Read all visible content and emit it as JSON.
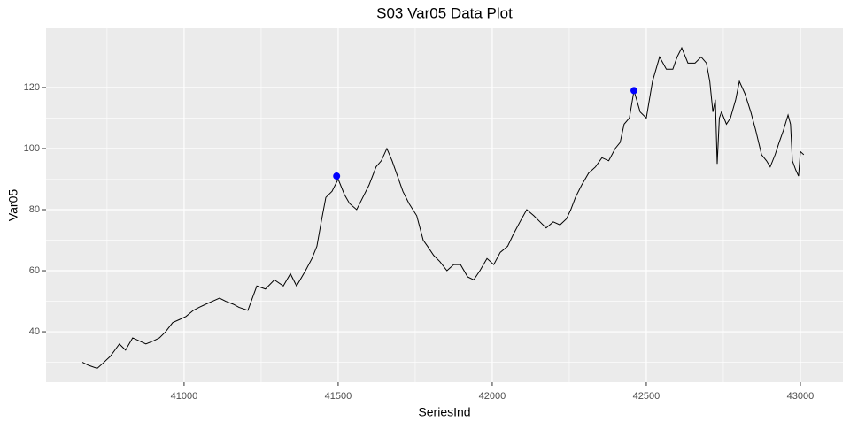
{
  "chart_data": {
    "type": "line",
    "title": "S03 Var05 Data Plot",
    "x_label": "SeriesInd",
    "y_label": "Var05",
    "x": [
      40670,
      40690,
      40718,
      40740,
      40761,
      40790,
      40810,
      40833,
      40855,
      40876,
      40900,
      40920,
      40940,
      40963,
      40985,
      41006,
      41030,
      41049,
      41070,
      41092,
      41115,
      41135,
      41160,
      41178,
      41207,
      41236,
      41264,
      41293,
      41322,
      41345,
      41365,
      41394,
      41415,
      41431,
      41445,
      41460,
      41480,
      41500,
      41520,
      41537,
      41560,
      41580,
      41600,
      41623,
      41640,
      41658,
      41675,
      41689,
      41710,
      41730,
      41755,
      41776,
      41790,
      41810,
      41830,
      41853,
      41875,
      41897,
      41920,
      41940,
      41960,
      41983,
      42005,
      42026,
      42050,
      42069,
      42090,
      42112,
      42135,
      42155,
      42175,
      42198,
      42220,
      42241,
      42255,
      42270,
      42290,
      42313,
      42335,
      42356,
      42378,
      42399,
      42415,
      42428,
      42445,
      42460,
      42480,
      42500,
      42520,
      42543,
      42565,
      42586,
      42600,
      42615,
      42635,
      42658,
      42678,
      42695,
      42706,
      42716,
      42724,
      42730,
      42737,
      42744,
      42760,
      42773,
      42790,
      42802,
      42820,
      42839,
      42855,
      42874,
      42890,
      42902,
      42918,
      42931,
      42945,
      42960,
      42968,
      42974,
      42985,
      42994,
      43000,
      43011
    ],
    "values": [
      30,
      29,
      28,
      30,
      32,
      36,
      34,
      38,
      37,
      36,
      37,
      38,
      40,
      43,
      44,
      45,
      47,
      48,
      49,
      50,
      51,
      50,
      49,
      48,
      47,
      55,
      54,
      57,
      55,
      59,
      55,
      60,
      64,
      68,
      76,
      84,
      86,
      90,
      85,
      82,
      80,
      84,
      88,
      94,
      96,
      100,
      96,
      92,
      86,
      82,
      78,
      70,
      68,
      65,
      63,
      60,
      62,
      62,
      58,
      57,
      60,
      64,
      62,
      66,
      68,
      72,
      76,
      80,
      78,
      76,
      74,
      76,
      75,
      77,
      80,
      84,
      88,
      92,
      94,
      97,
      96,
      100,
      102,
      108,
      110,
      119,
      112,
      110,
      122,
      130,
      126,
      126,
      130,
      133,
      128,
      128,
      130,
      128,
      122,
      112,
      116,
      95,
      110,
      112,
      108,
      110,
      116,
      122,
      118,
      112,
      106,
      98,
      96,
      94,
      98,
      102,
      106,
      111,
      108,
      96,
      93,
      91,
      99,
      98
    ],
    "color": "#000000",
    "points": {
      "x": [
        41495,
        42460
      ],
      "values": [
        91,
        119
      ],
      "color": "#0000ff"
    },
    "xlim": [
      40552,
      43138
    ],
    "ylim": [
      23.5,
      139.4
    ],
    "xticks": [
      41000,
      41500,
      42000,
      42500,
      43000
    ],
    "yticks": [
      40,
      60,
      80,
      100,
      120
    ],
    "grid": true
  }
}
